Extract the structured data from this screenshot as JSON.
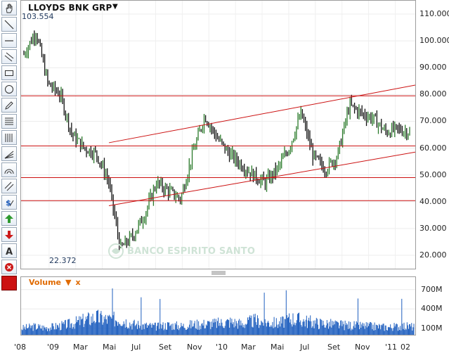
{
  "chart": {
    "title": "LLOYDS BNK GRP",
    "max_label": "103.554",
    "min_label": "22.372",
    "watermark": "BANCO ESPIRITO SANTO",
    "price_axis": [
      "110.000",
      "100.000",
      "90.000",
      "80.000",
      "70.000",
      "60.000",
      "50.000",
      "40.000",
      "30.000",
      "20.000"
    ],
    "x_axis": [
      "'08",
      "'09",
      "Mar",
      "Mai",
      "Jul",
      "Set",
      "Nov",
      "'10",
      "Mar",
      "Mai",
      "Jul",
      "Set",
      "Nov",
      "'11",
      "02"
    ],
    "horizontal_lines": [
      79.5,
      60.8,
      49.0,
      40.4
    ],
    "colors": {
      "line": "#cc1111",
      "candle_up": "#2a7a2a",
      "candle_down": "#111111",
      "volume": "#1f5fbf"
    }
  },
  "volume": {
    "label": "Volume",
    "axis": [
      "700M",
      "400M",
      "100M"
    ]
  },
  "chart_data": {
    "type": "line",
    "title": "LLOYDS BNK GRP",
    "ylim": [
      15,
      115
    ],
    "x": [
      "2008-01",
      "2008-02",
      "2008-04",
      "2008-06",
      "2008-08",
      "2008-10",
      "2008-12",
      "2009-01",
      "2009-02",
      "2009-03",
      "2009-04",
      "2009-05",
      "2009-06",
      "2009-07",
      "2009-08",
      "2009-09",
      "2009-10",
      "2009-11",
      "2009-12",
      "2010-01",
      "2010-02",
      "2010-03",
      "2010-04",
      "2010-05",
      "2010-06",
      "2010-07",
      "2010-08",
      "2010-09",
      "2010-10",
      "2010-11",
      "2010-12",
      "2011-01",
      "2011-02"
    ],
    "series": [
      {
        "values": [
          95,
          103.5,
          84,
          80,
          65,
          60,
          58,
          48,
          22.4,
          27,
          35,
          47,
          44,
          41,
          58,
          72,
          64,
          58,
          54,
          50,
          47,
          52,
          60,
          73,
          57,
          52,
          57,
          76,
          73,
          71,
          66,
          67,
          66
        ]
      }
    ],
    "volume_values": [
      120,
      150,
      130,
      160,
      200,
      260,
      320,
      280,
      300,
      200,
      170,
      150,
      180,
      160,
      190,
      200,
      210,
      240,
      200,
      260,
      230,
      210,
      300,
      260,
      220,
      200,
      180,
      170,
      160,
      150,
      140,
      160,
      150
    ]
  }
}
